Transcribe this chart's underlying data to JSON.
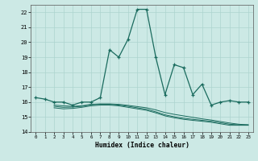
{
  "xlabel": "Humidex (Indice chaleur)",
  "xlim": [
    -0.5,
    23.5
  ],
  "ylim": [
    14,
    22.5
  ],
  "yticks": [
    14,
    15,
    16,
    17,
    18,
    19,
    20,
    21,
    22
  ],
  "xticks": [
    0,
    1,
    2,
    3,
    4,
    5,
    6,
    7,
    8,
    9,
    10,
    11,
    12,
    13,
    14,
    15,
    16,
    17,
    18,
    19,
    20,
    21,
    22,
    23
  ],
  "background_color": "#cce9e5",
  "line_color": "#1a6b5e",
  "grid_color": "#add4cf",
  "line1_x": [
    0,
    1,
    2,
    3,
    4,
    5,
    6,
    7,
    8,
    9,
    10,
    11,
    12,
    13,
    14,
    15,
    16,
    17,
    18,
    19,
    20,
    21,
    22,
    23
  ],
  "line1_y": [
    16.3,
    16.2,
    16.0,
    16.0,
    15.8,
    16.0,
    16.0,
    16.3,
    19.5,
    19.0,
    20.2,
    22.2,
    22.2,
    19.0,
    16.5,
    18.5,
    18.3,
    16.5,
    17.2,
    15.8,
    16.0,
    16.1,
    16.0,
    16.0
  ],
  "line2_x": [
    2,
    3,
    4,
    5,
    6,
    7,
    8,
    9,
    10,
    11,
    12,
    13,
    14,
    15,
    16,
    17,
    18,
    19,
    20,
    21,
    22,
    23
  ],
  "line2_y": [
    15.8,
    15.75,
    15.72,
    15.75,
    15.85,
    15.88,
    15.88,
    15.85,
    15.78,
    15.7,
    15.62,
    15.48,
    15.3,
    15.18,
    15.08,
    14.98,
    14.88,
    14.8,
    14.7,
    14.6,
    14.52,
    14.48
  ],
  "line3_x": [
    2,
    3,
    4,
    5,
    6,
    7,
    8,
    9,
    10,
    11,
    12,
    13,
    14,
    15,
    16,
    17,
    18,
    19,
    20,
    21,
    22,
    23
  ],
  "line3_y": [
    15.72,
    15.65,
    15.67,
    15.72,
    15.82,
    15.85,
    15.85,
    15.8,
    15.72,
    15.62,
    15.52,
    15.35,
    15.15,
    15.02,
    14.92,
    14.85,
    14.78,
    14.72,
    14.62,
    14.52,
    14.48,
    14.48
  ],
  "line4_x": [
    2,
    3,
    4,
    5,
    6,
    7,
    8,
    9,
    10,
    11,
    12,
    13,
    14,
    15,
    16,
    17,
    18,
    19,
    20,
    21,
    22,
    23
  ],
  "line4_y": [
    15.62,
    15.55,
    15.58,
    15.65,
    15.75,
    15.8,
    15.8,
    15.75,
    15.65,
    15.55,
    15.45,
    15.28,
    15.08,
    14.95,
    14.85,
    14.78,
    14.72,
    14.65,
    14.55,
    14.45,
    14.45,
    14.45
  ]
}
